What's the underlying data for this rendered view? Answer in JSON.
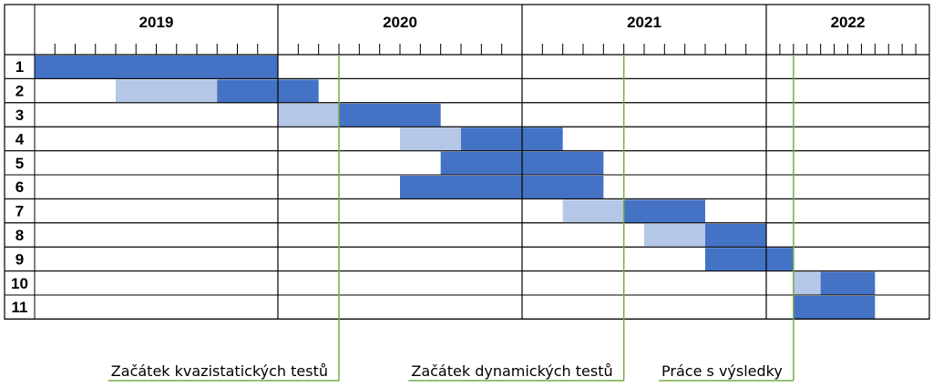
{
  "chart_data": {
    "type": "gantt",
    "years": [
      "2019",
      "2020",
      "2021",
      "2022"
    ],
    "months_per_year": 12,
    "time_unit": "month",
    "rows": [
      "1",
      "2",
      "3",
      "4",
      "5",
      "6",
      "7",
      "8",
      "9",
      "10",
      "11"
    ],
    "colors": {
      "dark": "#4472C4",
      "light": "#B4C7E7",
      "milestone": "#70AD47",
      "grid": "#000000"
    },
    "tasks": [
      {
        "row": "1",
        "light": null,
        "dark": [
          0,
          12
        ]
      },
      {
        "row": "2",
        "light": [
          4,
          9
        ],
        "dark": [
          9,
          14
        ]
      },
      {
        "row": "3",
        "light": [
          12,
          15
        ],
        "dark": [
          15,
          20
        ]
      },
      {
        "row": "4",
        "light": [
          18,
          21
        ],
        "dark": [
          21,
          26
        ]
      },
      {
        "row": "5",
        "light": null,
        "dark": [
          20,
          28
        ]
      },
      {
        "row": "6",
        "light": null,
        "dark": [
          18,
          28
        ]
      },
      {
        "row": "7",
        "light": [
          26,
          29
        ],
        "dark": [
          29,
          33
        ]
      },
      {
        "row": "8",
        "light": [
          30,
          33
        ],
        "dark": [
          33,
          36
        ]
      },
      {
        "row": "9",
        "light": null,
        "dark": [
          33,
          38
        ]
      },
      {
        "row": "10",
        "light": [
          38,
          40
        ],
        "dark": [
          40,
          44
        ]
      },
      {
        "row": "11",
        "light": null,
        "dark": [
          38,
          44
        ]
      }
    ],
    "milestones": [
      {
        "label": "Začátek kvazistatických testů",
        "month": 15
      },
      {
        "label": "Začátek dynamických testů",
        "month": 29
      },
      {
        "label": "Práce s výsledky",
        "month": 38
      }
    ]
  }
}
